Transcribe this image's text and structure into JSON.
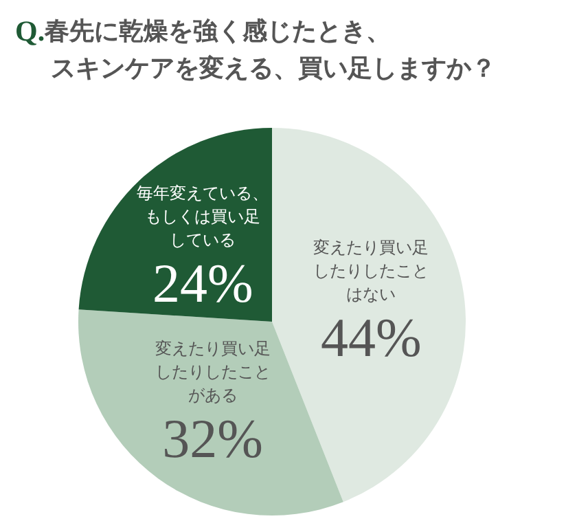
{
  "chart_data": {
    "type": "pie",
    "title": "Q.春先に乾燥を強く感じたとき、スキンケアを変える、買い足しますか？",
    "categories": [
      "変えたり買い足したりしたことはない",
      "変えたり買い足したりしたことがある",
      "毎年変えている、もしくは買い足している"
    ],
    "values": [
      44,
      32,
      24
    ],
    "value_labels": [
      "44%",
      "32%",
      "24%"
    ],
    "colors": [
      "#dfe9e1",
      "#b3cdb9",
      "#1f5a35"
    ],
    "legend": false
  }
}
